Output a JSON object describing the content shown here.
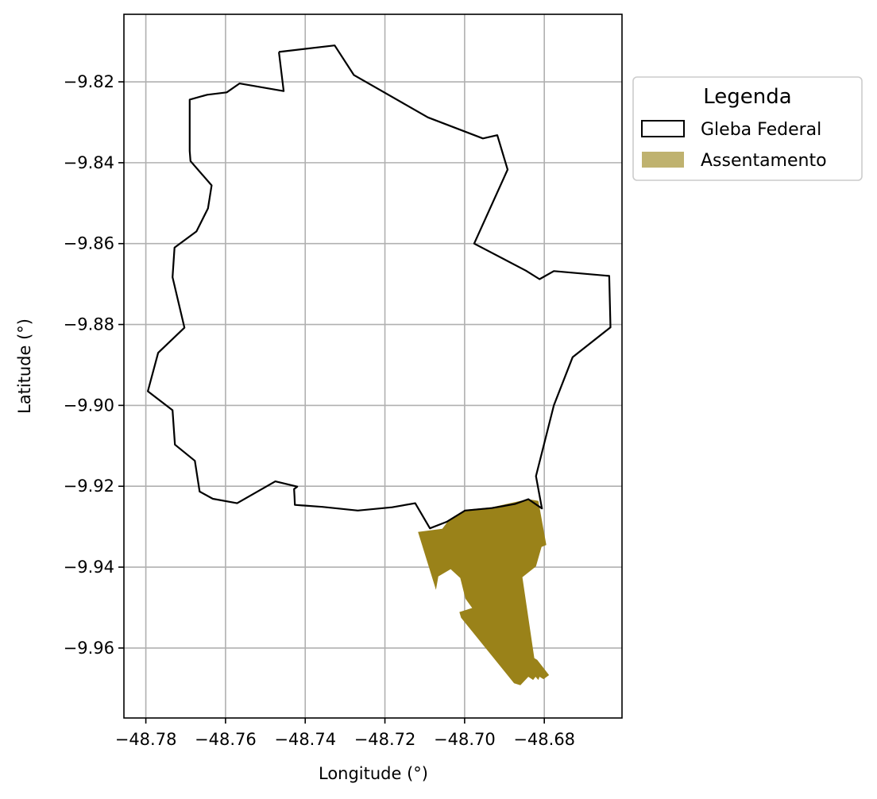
{
  "axes": {
    "xlabel": "Longitude (°)",
    "ylabel": "Latitude (°)",
    "xlim": [
      -48.7855,
      -48.6605
    ],
    "ylim": [
      -9.9773,
      -9.8033
    ],
    "xticks": [
      {
        "value": -48.78,
        "label": "−48.78"
      },
      {
        "value": -48.76,
        "label": "−48.76"
      },
      {
        "value": -48.74,
        "label": "−48.74"
      },
      {
        "value": -48.72,
        "label": "−48.72"
      },
      {
        "value": -48.7,
        "label": "−48.70"
      },
      {
        "value": -48.68,
        "label": "−48.68"
      }
    ],
    "yticks": [
      {
        "value": -9.82,
        "label": "−9.82"
      },
      {
        "value": -9.84,
        "label": "−9.84"
      },
      {
        "value": -9.86,
        "label": "−9.86"
      },
      {
        "value": -9.88,
        "label": "−9.88"
      },
      {
        "value": -9.9,
        "label": "−9.90"
      },
      {
        "value": -9.92,
        "label": "−9.92"
      },
      {
        "value": -9.94,
        "label": "−9.94"
      },
      {
        "value": -9.96,
        "label": "−9.96"
      }
    ],
    "grid": true
  },
  "legend": {
    "title": "Legenda",
    "placement": "outside-right-top",
    "items": [
      {
        "label": "Gleba Federal",
        "style": "outline",
        "color": "#000000"
      },
      {
        "label": "Assentamento",
        "style": "fill",
        "color": "#bfb26f"
      }
    ]
  },
  "colors": {
    "gleba_outline": "#000000",
    "assentamento_fill": "#9a8219",
    "assentamento_legend": "#bfb26f",
    "grid": "#b0b0b0"
  },
  "chart_data": {
    "type": "map",
    "layers": [
      {
        "name": "Gleba Federal",
        "geometry": "polygon-outline",
        "coordinates": [
          [
            -48.7466,
            -9.8126
          ],
          [
            -48.7326,
            -9.811
          ],
          [
            -48.7278,
            -9.8183
          ],
          [
            -48.7092,
            -9.8288
          ],
          [
            -48.6954,
            -9.834
          ],
          [
            -48.6918,
            -9.8332
          ],
          [
            -48.6892,
            -9.8417
          ],
          [
            -48.6976,
            -9.86
          ],
          [
            -48.6846,
            -9.8667
          ],
          [
            -48.6812,
            -9.8688
          ],
          [
            -48.6776,
            -9.8668
          ],
          [
            -48.6637,
            -9.868
          ],
          [
            -48.6634,
            -9.8807
          ],
          [
            -48.6729,
            -9.8881
          ],
          [
            -48.6776,
            -9.9
          ],
          [
            -48.6821,
            -9.9175
          ],
          [
            -48.6806,
            -9.9255
          ],
          [
            -48.684,
            -9.9232
          ],
          [
            -48.6874,
            -9.9244
          ],
          [
            -48.6932,
            -9.9254
          ],
          [
            -48.6999,
            -9.926
          ],
          [
            -48.7045,
            -9.9288
          ],
          [
            -48.7087,
            -9.9304
          ],
          [
            -48.7124,
            -9.9242
          ],
          [
            -48.7182,
            -9.9252
          ],
          [
            -48.7268,
            -9.926
          ],
          [
            -48.7357,
            -9.9251
          ],
          [
            -48.7426,
            -9.9246
          ],
          [
            -48.7427,
            -9.9224
          ],
          [
            -48.7428,
            -9.9207
          ],
          [
            -48.742,
            -9.9201
          ],
          [
            -48.7475,
            -9.9188
          ],
          [
            -48.7571,
            -9.9242
          ],
          [
            -48.7632,
            -9.9231
          ],
          [
            -48.7665,
            -9.9213
          ],
          [
            -48.7677,
            -9.9137
          ],
          [
            -48.7727,
            -9.9097
          ],
          [
            -48.7733,
            -9.9012
          ],
          [
            -48.7795,
            -9.8965
          ],
          [
            -48.7769,
            -9.887
          ],
          [
            -48.7703,
            -9.8808
          ],
          [
            -48.7733,
            -9.8683
          ],
          [
            -48.7728,
            -9.861
          ],
          [
            -48.7673,
            -9.857
          ],
          [
            -48.7644,
            -9.8513
          ],
          [
            -48.7635,
            -9.8456
          ],
          [
            -48.7688,
            -9.8396
          ],
          [
            -48.769,
            -9.8371
          ],
          [
            -48.769,
            -9.8244
          ],
          [
            -48.7646,
            -9.8232
          ],
          [
            -48.7597,
            -9.8226
          ],
          [
            -48.7565,
            -9.8204
          ],
          [
            -48.7454,
            -9.8223
          ],
          [
            -48.7466,
            -9.8126
          ]
        ]
      },
      {
        "name": "Assentamento",
        "geometry": "polygon-fill",
        "coordinates": [
          [
            -48.7117,
            -9.9313
          ],
          [
            -48.7056,
            -9.9305
          ],
          [
            -48.7042,
            -9.9287
          ],
          [
            -48.6996,
            -9.9258
          ],
          [
            -48.6932,
            -9.9252
          ],
          [
            -48.684,
            -9.9232
          ],
          [
            -48.6815,
            -9.9236
          ],
          [
            -48.6795,
            -9.9345
          ],
          [
            -48.6807,
            -9.935
          ],
          [
            -48.6821,
            -9.9398
          ],
          [
            -48.6855,
            -9.9425
          ],
          [
            -48.6825,
            -9.9625
          ],
          [
            -48.6818,
            -9.9629
          ],
          [
            -48.6788,
            -9.9667
          ],
          [
            -48.6802,
            -9.9677
          ],
          [
            -48.6812,
            -9.9671
          ],
          [
            -48.6815,
            -9.9679
          ],
          [
            -48.6822,
            -9.9671
          ],
          [
            -48.6828,
            -9.9679
          ],
          [
            -48.684,
            -9.9671
          ],
          [
            -48.686,
            -9.9692
          ],
          [
            -48.6876,
            -9.9687
          ],
          [
            -48.7009,
            -9.9525
          ],
          [
            -48.7013,
            -9.9511
          ],
          [
            -48.6981,
            -9.9501
          ],
          [
            -48.6998,
            -9.9478
          ],
          [
            -48.7011,
            -9.9427
          ],
          [
            -48.7035,
            -9.9405
          ],
          [
            -48.7066,
            -9.9423
          ],
          [
            -48.7072,
            -9.9456
          ],
          [
            -48.7117,
            -9.9313
          ]
        ]
      }
    ]
  }
}
